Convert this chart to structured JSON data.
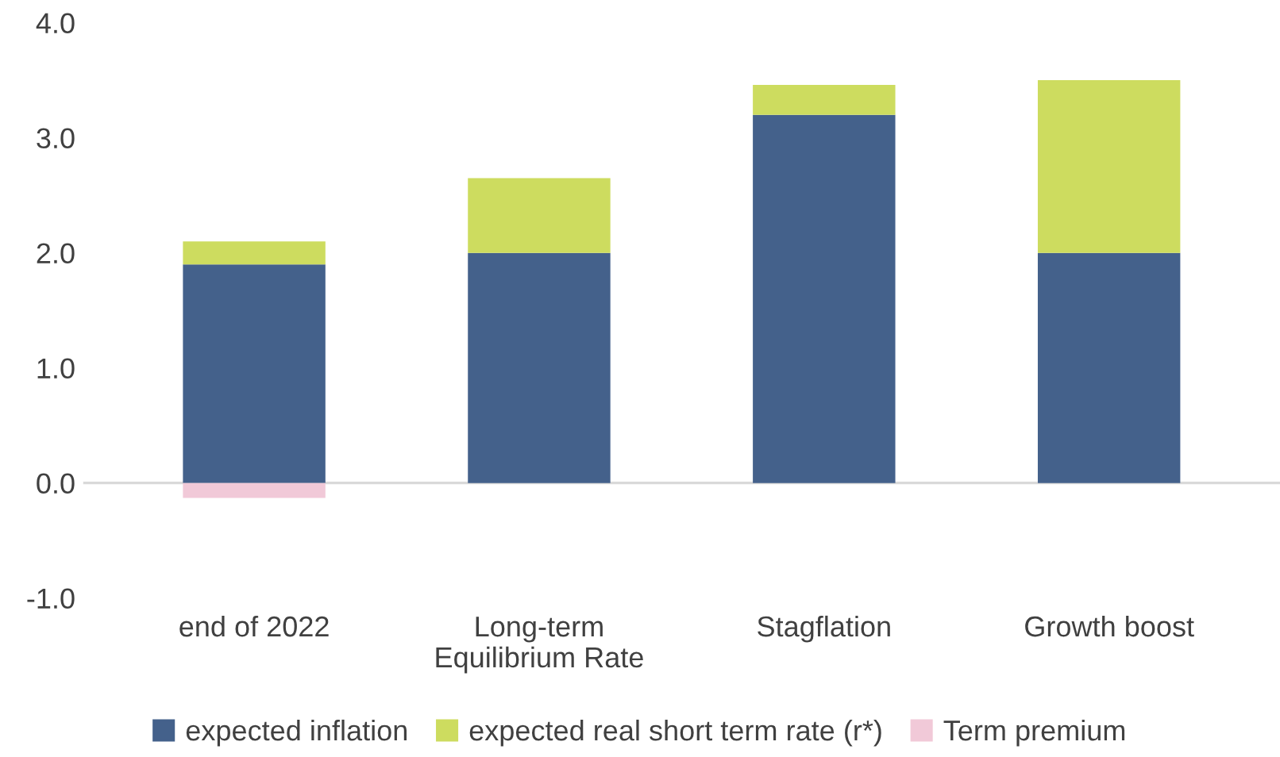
{
  "chart_data": {
    "type": "bar",
    "stacked": true,
    "categories": [
      "end of 2022",
      "Long-term\nEquilibrium Rate",
      "Stagflation",
      "Growth boost"
    ],
    "series": [
      {
        "name": "expected inflation",
        "color": "#44618b",
        "values": [
          1.9,
          2.0,
          3.2,
          2.0
        ]
      },
      {
        "name": "expected real short term rate (r*)",
        "color": "#cddc5f",
        "values": [
          0.2,
          0.65,
          0.26,
          1.5
        ]
      },
      {
        "name": "Term premium",
        "color": "#f1c9d8",
        "values": [
          -0.13,
          null,
          null,
          null
        ]
      }
    ],
    "ylim": [
      -1.0,
      4.0
    ],
    "yticks": [
      {
        "value": -1.0,
        "label": "-1.0"
      },
      {
        "value": 0.0,
        "label": "0.0"
      },
      {
        "value": 1.0,
        "label": "1.0"
      },
      {
        "value": 2.0,
        "label": "2.0"
      },
      {
        "value": 3.0,
        "label": "3.0"
      },
      {
        "value": 4.0,
        "label": "4.0"
      }
    ],
    "ref_lines": [
      {
        "axis": "y",
        "value": 0.0,
        "color": "#d9d9d9"
      }
    ],
    "grid": false,
    "legend": "bottom"
  }
}
